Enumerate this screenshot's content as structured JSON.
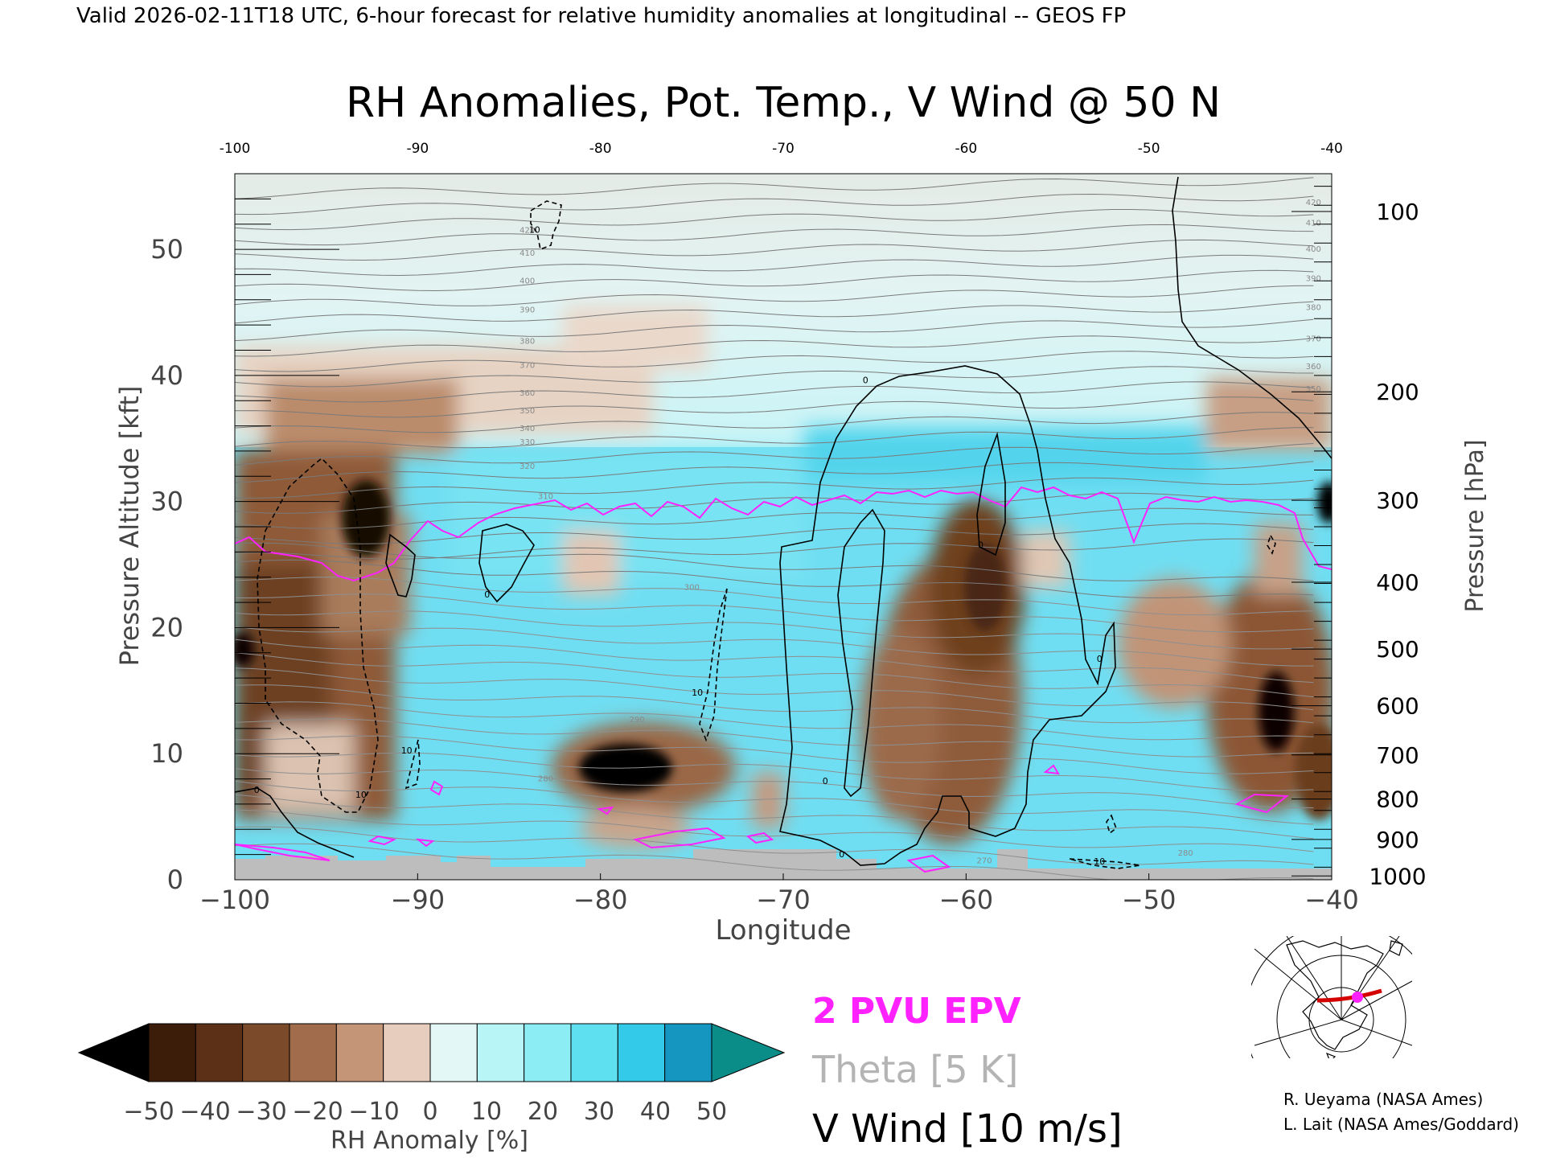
{
  "header": {
    "caption": "Valid 2026-02-11T18 UTC, 6-hour forecast for relative humidity anomalies at longitudinal -- GEOS FP"
  },
  "chart_data": {
    "type": "heatmap",
    "title": "RH Anomalies, Pot. Temp., V Wind @ 50 N",
    "xlabel": "Longitude",
    "ylabel_left": "Pressure Altitude [kft]",
    "ylabel_right": "Pressure [hPa]",
    "x_ticks": [
      -100,
      -90,
      -80,
      -70,
      -60,
      -50,
      -40
    ],
    "x_tick_labels": [
      "−100",
      "−90",
      "−80",
      "−70",
      "−60",
      "−50",
      "−40"
    ],
    "x_top_tick_labels": [
      "-100",
      "-90",
      "-80",
      "-70",
      "-60",
      "-50",
      "-40"
    ],
    "xlim": [
      -100,
      -40
    ],
    "y_ticks": [
      0,
      10,
      20,
      30,
      40,
      50
    ],
    "y_tick_labels": [
      "0",
      "10",
      "20",
      "30",
      "40",
      "50"
    ],
    "ylim": [
      0,
      56
    ],
    "pressure_ticks": [
      {
        "hPa": 100,
        "kft": 53.0
      },
      {
        "hPa": 200,
        "kft": 38.7
      },
      {
        "hPa": 300,
        "kft": 30.1
      },
      {
        "hPa": 400,
        "kft": 23.6
      },
      {
        "hPa": 500,
        "kft": 18.3
      },
      {
        "hPa": 600,
        "kft": 13.8
      },
      {
        "hPa": 700,
        "kft": 9.9
      },
      {
        "hPa": 800,
        "kft": 6.4
      },
      {
        "hPa": 900,
        "kft": 3.2
      },
      {
        "hPa": 1000,
        "kft": 0.3
      }
    ],
    "theta_labels": [
      {
        "value": "420",
        "x": -84.0,
        "y": 51.3
      },
      {
        "value": "410",
        "x": -84.0,
        "y": 49.5
      },
      {
        "value": "400",
        "x": -84.0,
        "y": 47.3
      },
      {
        "value": "390",
        "x": -84.0,
        "y": 45.0
      },
      {
        "value": "380",
        "x": -84.0,
        "y": 42.5
      },
      {
        "value": "370",
        "x": -84.0,
        "y": 40.6
      },
      {
        "value": "360",
        "x": -84.0,
        "y": 38.4
      },
      {
        "value": "350",
        "x": -84.0,
        "y": 37.0
      },
      {
        "value": "340",
        "x": -84.0,
        "y": 35.6
      },
      {
        "value": "330",
        "x": -84.0,
        "y": 34.5
      },
      {
        "value": "320",
        "x": -84.0,
        "y": 32.6
      },
      {
        "value": "310",
        "x": -83.0,
        "y": 30.2
      },
      {
        "value": "300",
        "x": -75.0,
        "y": 23.0
      },
      {
        "value": "290",
        "x": -78.0,
        "y": 12.5
      },
      {
        "value": "280",
        "x": -83.0,
        "y": 7.8
      },
      {
        "value": "270",
        "x": -59.0,
        "y": 1.3
      },
      {
        "value": "280",
        "x": -48.0,
        "y": 1.9
      },
      {
        "value": "420",
        "x": -41.0,
        "y": 53.5
      },
      {
        "value": "410",
        "x": -41.0,
        "y": 51.9
      },
      {
        "value": "400",
        "x": -41.0,
        "y": 49.8
      },
      {
        "value": "390",
        "x": -41.0,
        "y": 47.5
      },
      {
        "value": "380",
        "x": -41.0,
        "y": 45.2
      },
      {
        "value": "370",
        "x": -41.0,
        "y": 42.7
      },
      {
        "value": "360",
        "x": -41.0,
        "y": 40.5
      },
      {
        "value": "350",
        "x": -41.0,
        "y": 38.7
      }
    ],
    "vwind_labels": [
      {
        "value": "0",
        "x": -65.5,
        "y": 39.4
      },
      {
        "value": "0",
        "x": -59.2,
        "y": 26.3
      },
      {
        "value": "0",
        "x": -86.2,
        "y": 22.4
      },
      {
        "value": "0",
        "x": -52.7,
        "y": 17.3
      },
      {
        "value": "0",
        "x": -67.7,
        "y": 7.6
      },
      {
        "value": "0",
        "x": -98.8,
        "y": 6.9
      },
      {
        "value": "0",
        "x": -66.8,
        "y": 1.8
      },
      {
        "value": "10",
        "x": -83.6,
        "y": 51.3
      },
      {
        "value": "10",
        "x": -74.7,
        "y": 14.6
      },
      {
        "value": "10",
        "x": -90.6,
        "y": 10.0
      },
      {
        "value": "10",
        "x": -93.1,
        "y": 6.5
      },
      {
        "value": "10",
        "x": -52.7,
        "y": 1.2
      }
    ],
    "colorbar": {
      "label": "RH Anomaly [%]",
      "tick_labels": [
        "−50",
        "−40",
        "−30",
        "−20",
        "−10",
        "0",
        "10",
        "20",
        "30",
        "40",
        "50"
      ],
      "colors": [
        "#000000",
        "#3c1d0a",
        "#5b3016",
        "#7a4a2a",
        "#a06c4c",
        "#c49677",
        "#e6cdbd",
        "#e4f7f7",
        "#b8f5f7",
        "#8cedf5",
        "#5fe0f0",
        "#33c9e8",
        "#1596c0",
        "#0a8c88"
      ]
    },
    "legend": [
      {
        "text": "2 PVU EPV",
        "color": "#ff22ff"
      },
      {
        "text": "Theta [5 K]",
        "color": "#b4b4b4"
      },
      {
        "text": "V Wind [10 m/s]",
        "color": "#000000"
      }
    ]
  },
  "credits": {
    "line1": "R. Ueyama (NASA Ames)",
    "line2": "L. Lait (NASA Ames/Goddard)"
  }
}
